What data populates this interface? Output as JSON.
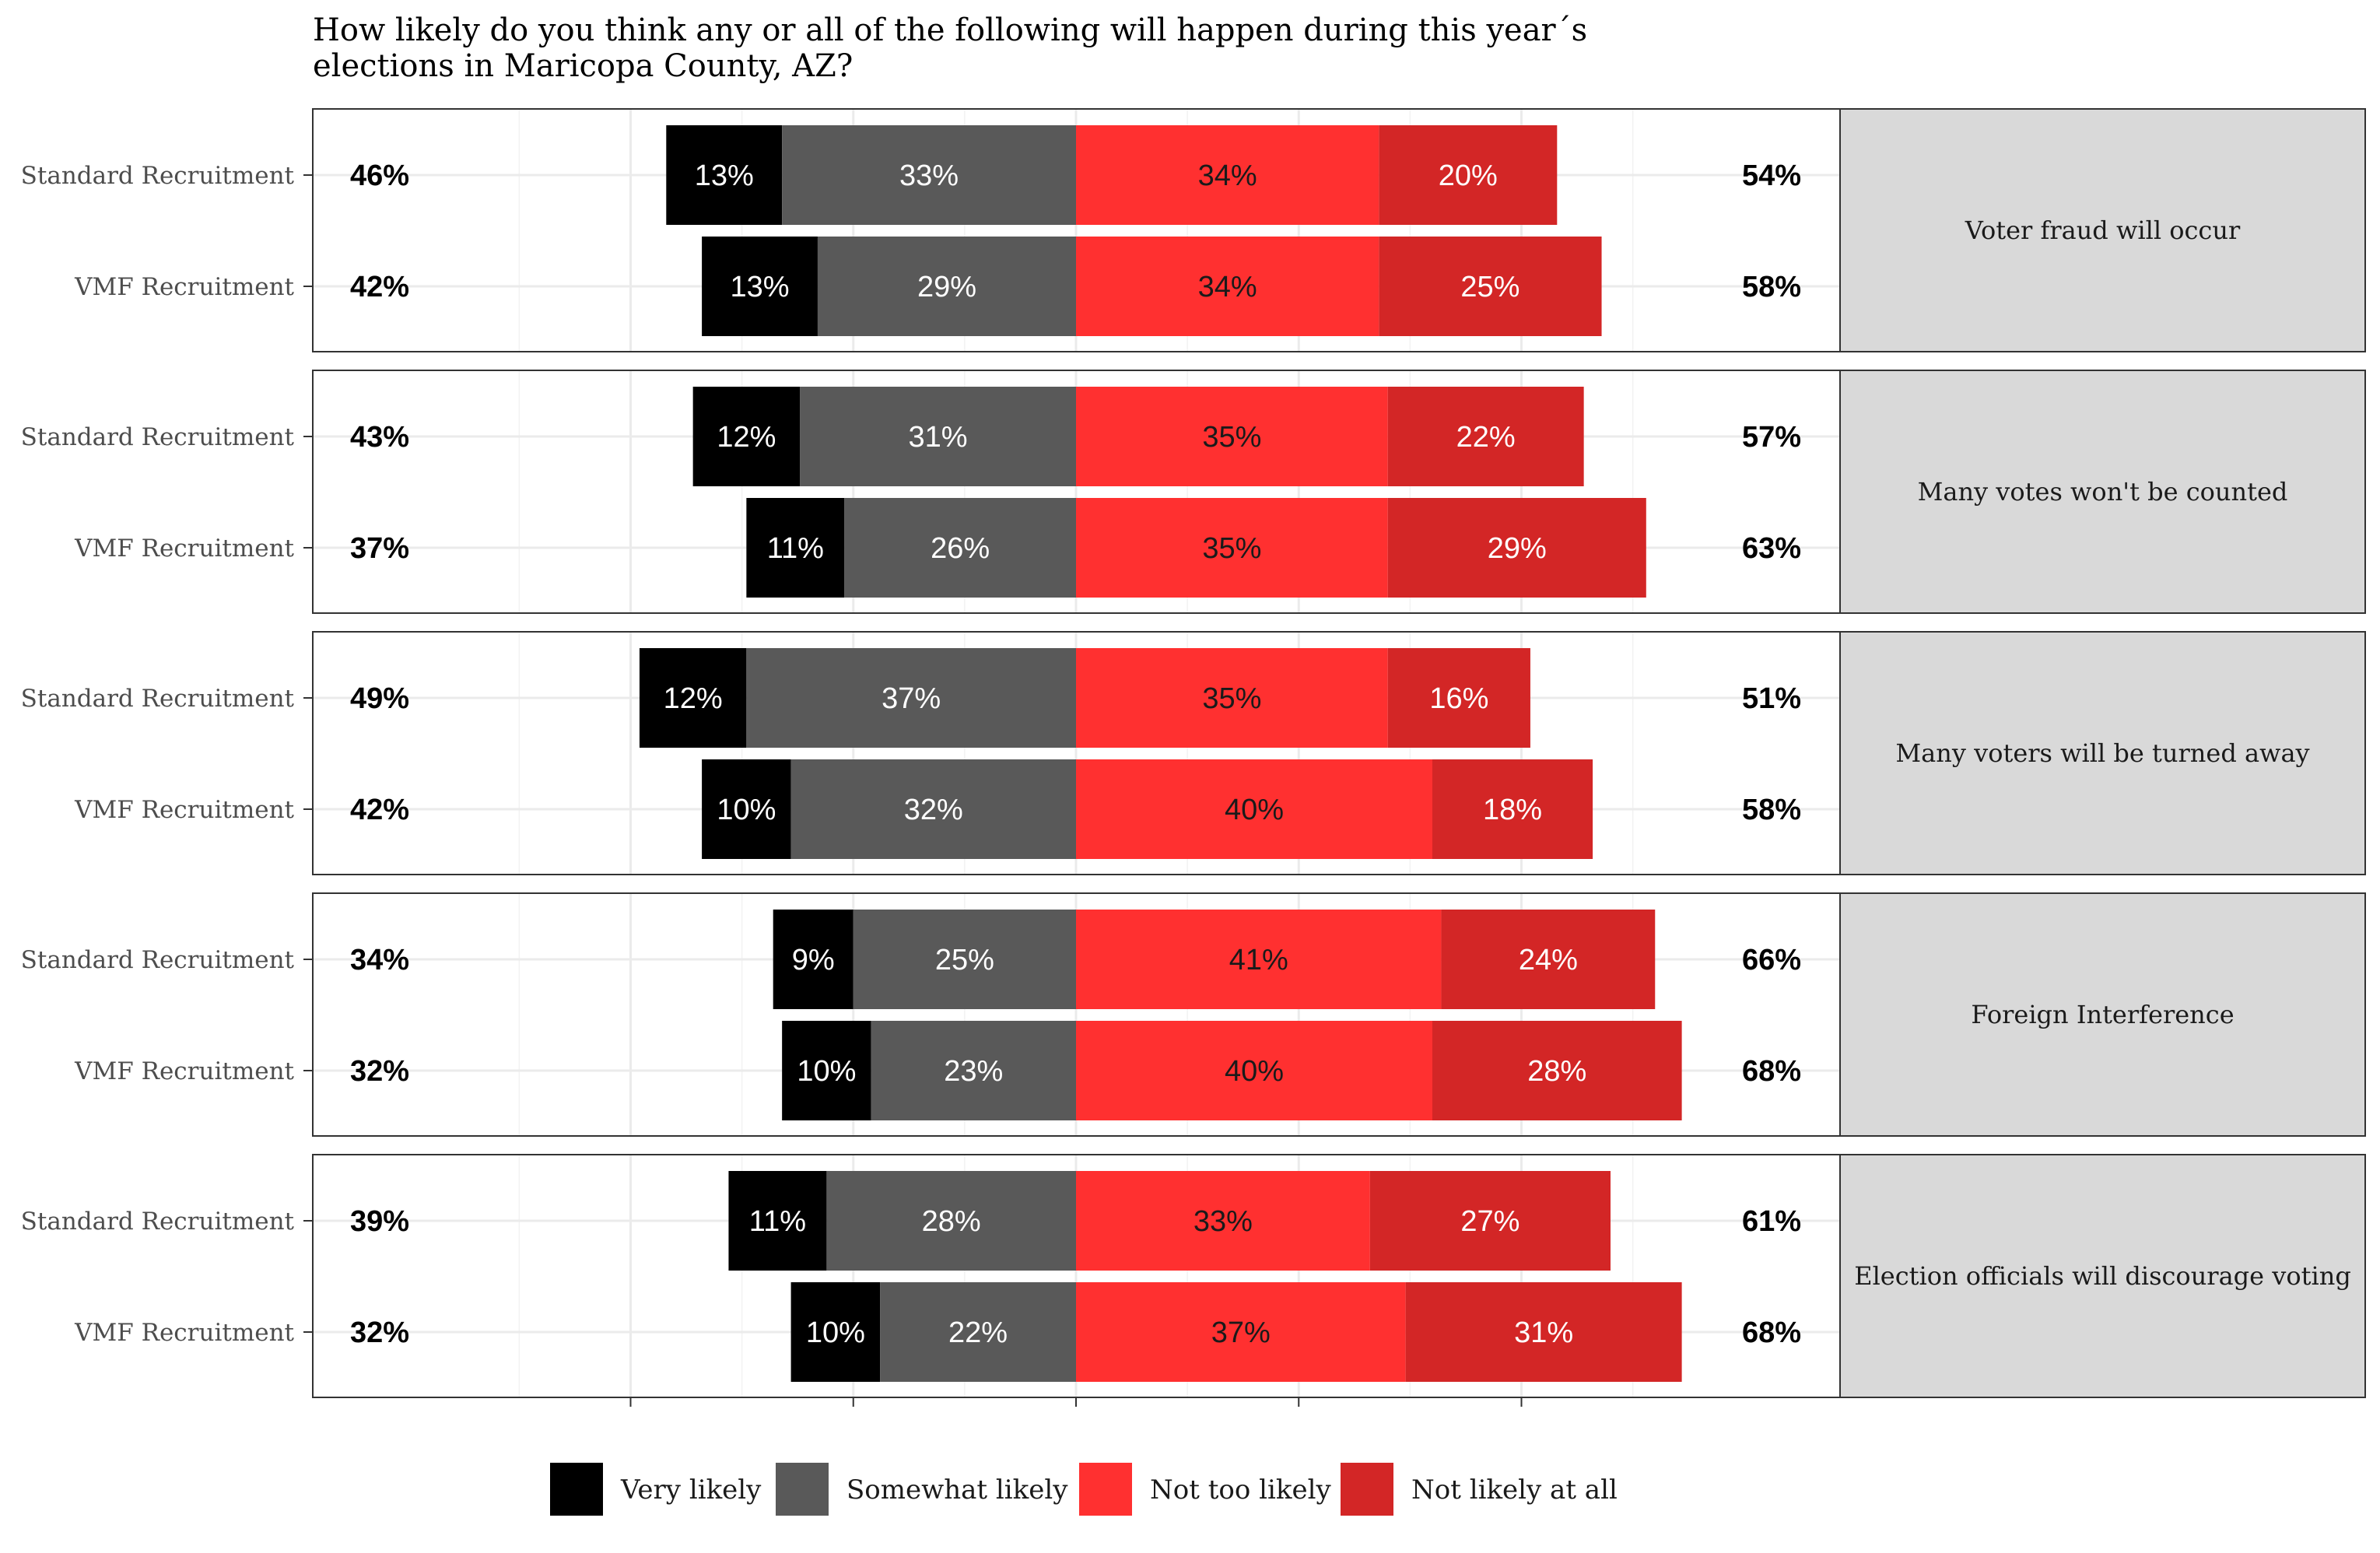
{
  "chart_data": {
    "type": "bar",
    "subtype": "diverging-stacked",
    "title": "How likely do you think any or all of the following will happen during this year´s elections in Maricopa County, AZ?",
    "title_lines": [
      "How likely do you think any or all of the following will happen during this year´s",
      "elections in Maricopa County, AZ?"
    ],
    "categories": [
      "Very likely",
      "Somewhat likely",
      "Not too likely",
      "Not likely at all"
    ],
    "colors": [
      "#000000",
      "#595959",
      "#ff3030",
      "#d32626"
    ],
    "label_colors": [
      "#ffffff",
      "#ffffff",
      "#1a1a1a",
      "#ffffff"
    ],
    "xlim": [
      -72,
      72
    ],
    "grid": true,
    "legend_position": "bottom",
    "panels": [
      {
        "strip": "Voter fraud will occur",
        "rows": [
          {
            "label": "Standard Recruitment",
            "values": [
              13,
              33,
              34,
              20
            ],
            "left_total": "46%",
            "right_total": "54%"
          },
          {
            "label": "VMF Recruitment",
            "values": [
              13,
              29,
              34,
              25
            ],
            "left_total": "42%",
            "right_total": "58%"
          }
        ]
      },
      {
        "strip": "Many votes won't be counted",
        "rows": [
          {
            "label": "Standard Recruitment",
            "values": [
              12,
              31,
              35,
              22
            ],
            "left_total": "43%",
            "right_total": "57%"
          },
          {
            "label": "VMF Recruitment",
            "values": [
              11,
              26,
              35,
              29
            ],
            "left_total": "37%",
            "right_total": "63%"
          }
        ]
      },
      {
        "strip": "Many voters will be turned away",
        "rows": [
          {
            "label": "Standard Recruitment",
            "values": [
              12,
              37,
              35,
              16
            ],
            "left_total": "49%",
            "right_total": "51%"
          },
          {
            "label": "VMF Recruitment",
            "values": [
              10,
              32,
              40,
              18
            ],
            "left_total": "42%",
            "right_total": "58%"
          }
        ]
      },
      {
        "strip": "Foreign Interference",
        "rows": [
          {
            "label": "Standard Recruitment",
            "values": [
              9,
              25,
              41,
              24
            ],
            "left_total": "34%",
            "right_total": "66%"
          },
          {
            "label": "VMF Recruitment",
            "values": [
              10,
              23,
              40,
              28
            ],
            "left_total": "32%",
            "right_total": "68%"
          }
        ]
      },
      {
        "strip": "Election officials will discourage voting",
        "rows": [
          {
            "label": "Standard Recruitment",
            "values": [
              11,
              28,
              33,
              27
            ],
            "left_total": "39%",
            "right_total": "61%"
          },
          {
            "label": "VMF Recruitment",
            "values": [
              10,
              22,
              37,
              31
            ],
            "left_total": "32%",
            "right_total": "68%"
          }
        ]
      }
    ]
  }
}
